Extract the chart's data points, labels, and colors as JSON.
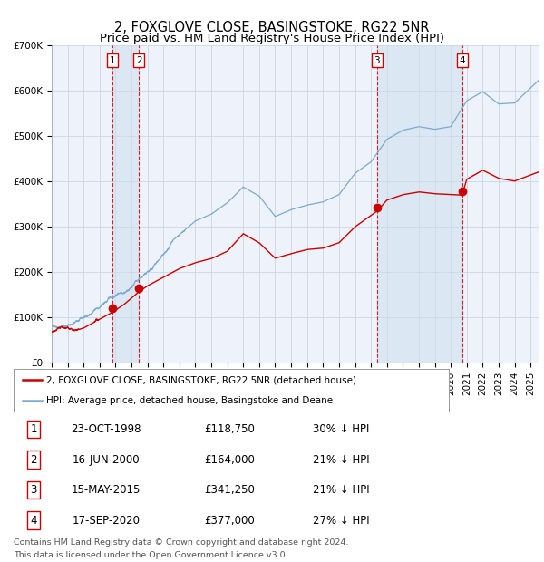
{
  "title": "2, FOXGLOVE CLOSE, BASINGSTOKE, RG22 5NR",
  "subtitle": "Price paid vs. HM Land Registry's House Price Index (HPI)",
  "ylim": [
    0,
    700000
  ],
  "yticks": [
    0,
    100000,
    200000,
    300000,
    400000,
    500000,
    600000,
    700000
  ],
  "ytick_labels": [
    "£0",
    "£100K",
    "£200K",
    "£300K",
    "£400K",
    "£500K",
    "£600K",
    "£700K"
  ],
  "xlim_start": 1995.0,
  "xlim_end": 2025.5,
  "background_color": "#ffffff",
  "plot_background": "#eef2fa",
  "grid_color": "#c8d0e0",
  "hpi_line_color": "#7aaad0",
  "price_line_color": "#cc0000",
  "sale_marker_color": "#cc0000",
  "dashed_line_color": "#cc0000",
  "shade_color": "#ccddf0",
  "legend_label_price": "2, FOXGLOVE CLOSE, BASINGSTOKE, RG22 5NR (detached house)",
  "legend_label_hpi": "HPI: Average price, detached house, Basingstoke and Deane",
  "transactions": [
    {
      "num": 1,
      "date_str": "23-OCT-1998",
      "date_x": 1998.81,
      "price": 118750,
      "pct": "30%",
      "dir": "↓"
    },
    {
      "num": 2,
      "date_str": "16-JUN-2000",
      "date_x": 2000.46,
      "price": 164000,
      "pct": "21%",
      "dir": "↓"
    },
    {
      "num": 3,
      "date_str": "15-MAY-2015",
      "date_x": 2015.37,
      "price": 341250,
      "pct": "21%",
      "dir": "↓"
    },
    {
      "num": 4,
      "date_str": "17-SEP-2020",
      "date_x": 2020.71,
      "price": 377000,
      "pct": "27%",
      "dir": "↓"
    }
  ],
  "footnote_line1": "Contains HM Land Registry data © Crown copyright and database right 2024.",
  "footnote_line2": "This data is licensed under the Open Government Licence v3.0.",
  "title_fontsize": 10.5,
  "subtitle_fontsize": 9.5,
  "tick_fontsize": 7.5,
  "legend_fontsize": 7.5,
  "table_fontsize": 8.5
}
